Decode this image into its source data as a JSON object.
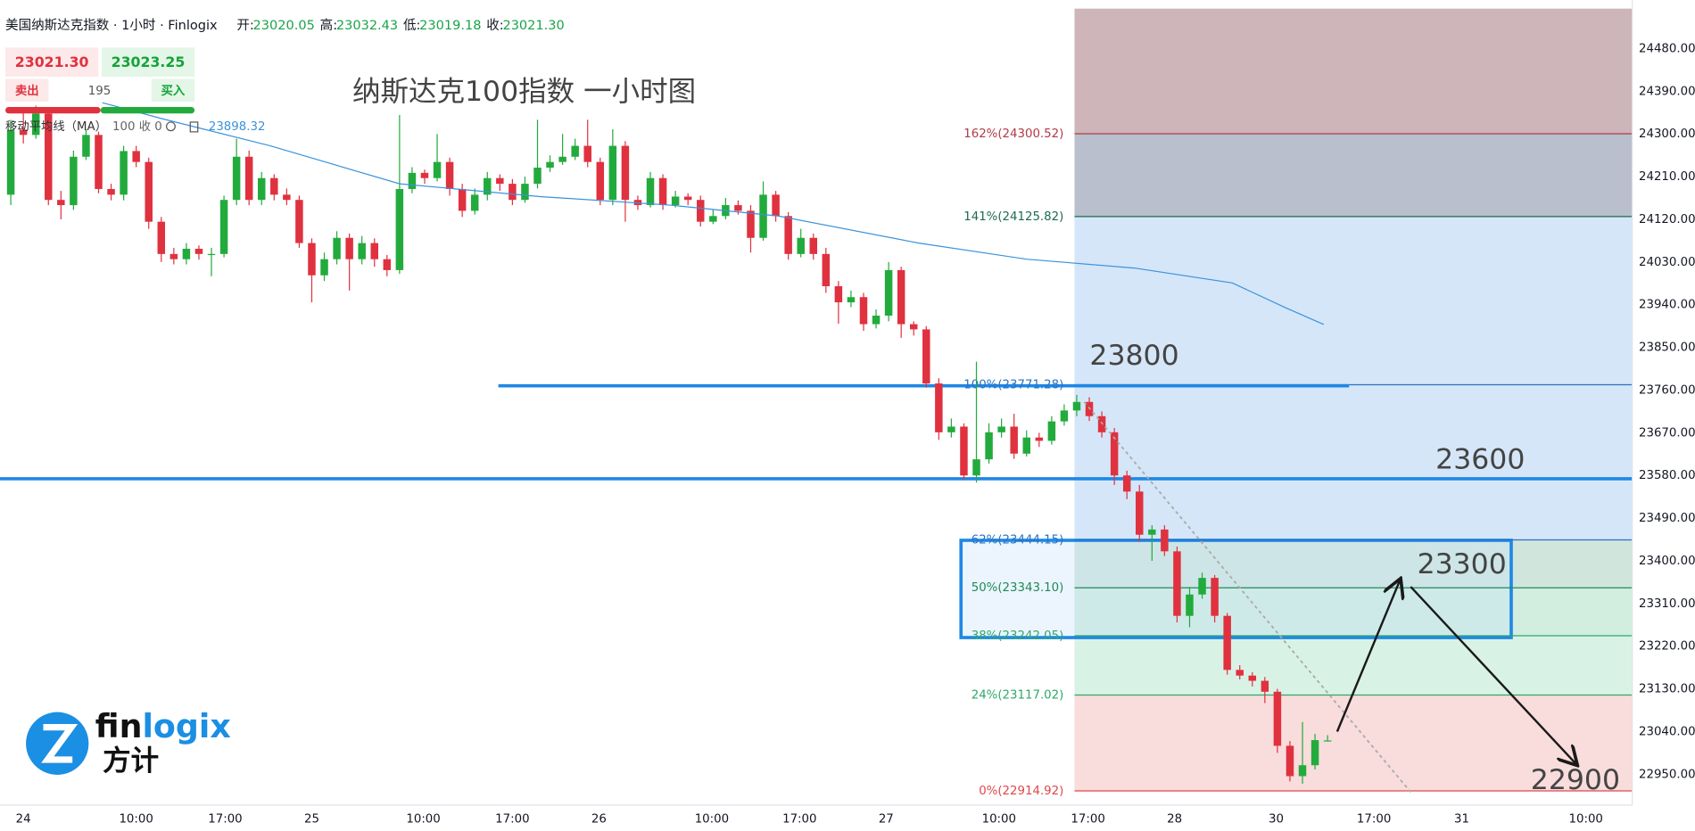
{
  "header": {
    "symbol": "美国纳斯达克指数 · 1小时 · Finlogix",
    "ohlc": [
      {
        "label": "开:",
        "value": "23020.05"
      },
      {
        "label": "高:",
        "value": "23032.43"
      },
      {
        "label": "低:",
        "value": "23019.18"
      },
      {
        "label": "收:",
        "value": "23021.30"
      }
    ]
  },
  "trade": {
    "sell_price": "23021.30",
    "buy_price": "23023.25",
    "sell": "卖出",
    "spread": "195",
    "buy": "买入"
  },
  "logo": {
    "wordmark": [
      "fin",
      "logix"
    ],
    "wordmark_cn": "方计"
  },
  "chart_data": {
    "type": "candlestick",
    "title": "纳斯达克100指数 一小时图",
    "up_color": "#22ab3c",
    "down_color": "#e0313f",
    "xlim": [
      -0.86,
      129.3
    ],
    "ylim": [
      22885,
      24582.5
    ],
    "xticks": [
      {
        "value": 1,
        "label": "24"
      },
      {
        "value": 10,
        "label": "10:00"
      },
      {
        "value": 17.1,
        "label": "17:00"
      },
      {
        "value": 24,
        "label": "25"
      },
      {
        "value": 32.9,
        "label": "10:00"
      },
      {
        "value": 40,
        "label": "17:00"
      },
      {
        "value": 46.9,
        "label": "26"
      },
      {
        "value": 55.9,
        "label": "10:00"
      },
      {
        "value": 62.9,
        "label": "17:00"
      },
      {
        "value": 69.8,
        "label": "27"
      },
      {
        "value": 78.8,
        "label": "10:00"
      },
      {
        "value": 85.9,
        "label": "17:00"
      },
      {
        "value": 92.8,
        "label": "28"
      },
      {
        "value": 100.9,
        "label": "30"
      },
      {
        "value": 108.7,
        "label": "17:00"
      },
      {
        "value": 115.7,
        "label": "31"
      },
      {
        "value": 125.6,
        "label": "10:00"
      }
    ],
    "yticks": [
      {
        "value": 24480,
        "label": "24480.00"
      },
      {
        "value": 24390,
        "label": "24390.00"
      },
      {
        "value": 24300,
        "label": "24300.00"
      },
      {
        "value": 24210,
        "label": "24210.00"
      },
      {
        "value": 24120,
        "label": "24120.00"
      },
      {
        "value": 24030,
        "label": "24030.00"
      },
      {
        "value": 23940,
        "label": "23940.00"
      },
      {
        "value": 23850,
        "label": "23850.00"
      },
      {
        "value": 23760,
        "label": "23760.00"
      },
      {
        "value": 23670,
        "label": "23670.00"
      },
      {
        "value": 23580,
        "label": "23580.00"
      },
      {
        "value": 23490,
        "label": "23490.00"
      },
      {
        "value": 23400,
        "label": "23400.00"
      },
      {
        "value": 23310,
        "label": "23310.00"
      },
      {
        "value": 23220,
        "label": "23220.00"
      },
      {
        "value": 23130,
        "label": "23130.00"
      },
      {
        "value": 23040,
        "label": "23040.00"
      },
      {
        "value": 22950,
        "label": "22950.00"
      }
    ],
    "ohlc": [
      [
        24172,
        24330,
        24150,
        24309
      ],
      [
        24309,
        24355,
        24280,
        24298
      ],
      [
        24298,
        24360,
        24290,
        24343
      ],
      [
        24343,
        24355,
        24150,
        24161
      ],
      [
        24161,
        24180,
        24120,
        24150
      ],
      [
        24150,
        24265,
        24140,
        24252
      ],
      [
        24252,
        24310,
        24245,
        24298
      ],
      [
        24298,
        24305,
        24175,
        24184
      ],
      [
        24184,
        24195,
        24160,
        24172
      ],
      [
        24172,
        24275,
        24160,
        24264
      ],
      [
        24264,
        24275,
        24230,
        24241
      ],
      [
        24241,
        24250,
        24100,
        24115
      ],
      [
        24115,
        24125,
        24030,
        24047
      ],
      [
        24047,
        24060,
        24025,
        24036
      ],
      [
        24036,
        24070,
        24025,
        24058
      ],
      [
        24058,
        24065,
        24035,
        24047
      ],
      [
        24047,
        24060,
        24000,
        24047
      ],
      [
        24047,
        24170,
        24040,
        24161
      ],
      [
        24161,
        24290,
        24150,
        24252
      ],
      [
        24252,
        24265,
        24150,
        24161
      ],
      [
        24161,
        24220,
        24150,
        24207
      ],
      [
        24207,
        24215,
        24160,
        24172
      ],
      [
        24172,
        24185,
        24150,
        24161
      ],
      [
        24161,
        24170,
        24060,
        24070
      ],
      [
        24070,
        24080,
        23945,
        24002
      ],
      [
        24002,
        24050,
        23990,
        24036
      ],
      [
        24036,
        24095,
        24025,
        24081
      ],
      [
        24081,
        24090,
        23970,
        24036
      ],
      [
        24036,
        24085,
        24025,
        24070
      ],
      [
        24070,
        24080,
        24020,
        24036
      ],
      [
        24036,
        24045,
        24000,
        24013
      ],
      [
        24013,
        24340,
        24005,
        24184
      ],
      [
        24184,
        24230,
        24175,
        24218
      ],
      [
        24218,
        24225,
        24195,
        24207
      ],
      [
        24207,
        24300,
        24200,
        24241
      ],
      [
        24241,
        24250,
        24170,
        24184
      ],
      [
        24184,
        24195,
        24125,
        24138
      ],
      [
        24138,
        24185,
        24130,
        24172
      ],
      [
        24172,
        24220,
        24160,
        24207
      ],
      [
        24207,
        24215,
        24180,
        24195
      ],
      [
        24195,
        24205,
        24150,
        24161
      ],
      [
        24161,
        24210,
        24155,
        24195
      ],
      [
        24195,
        24330,
        24185,
        24229
      ],
      [
        24229,
        24255,
        24220,
        24241
      ],
      [
        24241,
        24300,
        24235,
        24252
      ],
      [
        24252,
        24290,
        24245,
        24275
      ],
      [
        24275,
        24330,
        24230,
        24241
      ],
      [
        24241,
        24250,
        24150,
        24161
      ],
      [
        24161,
        24310,
        24150,
        24275
      ],
      [
        24275,
        24285,
        24115,
        24161
      ],
      [
        24161,
        24170,
        24140,
        24150
      ],
      [
        24150,
        24220,
        24145,
        24207
      ],
      [
        24207,
        24215,
        24140,
        24150
      ],
      [
        24150,
        24180,
        24145,
        24168
      ],
      [
        24168,
        24175,
        24150,
        24161
      ],
      [
        24161,
        24170,
        24105,
        24115
      ],
      [
        24115,
        24140,
        24110,
        24127
      ],
      [
        24127,
        24165,
        24120,
        24150
      ],
      [
        24150,
        24160,
        24130,
        24138
      ],
      [
        24138,
        24150,
        24050,
        24081
      ],
      [
        24081,
        24200,
        24075,
        24172
      ],
      [
        24172,
        24180,
        24115,
        24127
      ],
      [
        24127,
        24135,
        24035,
        24047
      ],
      [
        24047,
        24100,
        24040,
        24081
      ],
      [
        24081,
        24090,
        24035,
        24047
      ],
      [
        24047,
        24060,
        23965,
        23979
      ],
      [
        23979,
        23990,
        23900,
        23945
      ],
      [
        23945,
        23970,
        23935,
        23956
      ],
      [
        23956,
        23965,
        23885,
        23899
      ],
      [
        23899,
        23930,
        23890,
        23917
      ],
      [
        23917,
        24030,
        23905,
        24013
      ],
      [
        24013,
        24020,
        23870,
        23899
      ],
      [
        23899,
        23905,
        23875,
        23888
      ],
      [
        23888,
        23895,
        23765,
        23774
      ],
      [
        23774,
        23785,
        23655,
        23671
      ],
      [
        23671,
        23700,
        23660,
        23683
      ],
      [
        23683,
        23690,
        23570,
        23580
      ],
      [
        23580,
        23820,
        23565,
        23614
      ],
      [
        23614,
        23690,
        23605,
        23671
      ],
      [
        23671,
        23700,
        23660,
        23683
      ],
      [
        23683,
        23710,
        23615,
        23626
      ],
      [
        23626,
        23675,
        23620,
        23660
      ],
      [
        23660,
        23670,
        23640,
        23653
      ],
      [
        23653,
        23705,
        23645,
        23694
      ],
      [
        23694,
        23730,
        23685,
        23717
      ],
      [
        23717,
        23750,
        23705,
        23735
      ],
      [
        23735,
        23745,
        23695,
        23705
      ],
      [
        23705,
        23715,
        23660,
        23671
      ],
      [
        23671,
        23680,
        23560,
        23580
      ],
      [
        23580,
        23590,
        23530,
        23546
      ],
      [
        23546,
        23560,
        23440,
        23455
      ],
      [
        23455,
        23475,
        23400,
        23466
      ],
      [
        23466,
        23475,
        23410,
        23420
      ],
      [
        23420,
        23430,
        23270,
        23284
      ],
      [
        23284,
        23345,
        23260,
        23329
      ],
      [
        23329,
        23375,
        23320,
        23364
      ],
      [
        23364,
        23370,
        23270,
        23284
      ],
      [
        23284,
        23290,
        23160,
        23170
      ],
      [
        23170,
        23180,
        23150,
        23158
      ],
      [
        23158,
        23165,
        23135,
        23147
      ],
      [
        23147,
        23155,
        23100,
        23124
      ],
      [
        23124,
        23130,
        22995,
        23010
      ],
      [
        23010,
        23020,
        22935,
        22946
      ],
      [
        22946,
        23060,
        22930,
        22969
      ],
      [
        22969,
        23035,
        22960,
        23022
      ],
      [
        23020.05,
        23032.43,
        23019.18,
        23021.3
      ]
    ],
    "ma": {
      "name": "移动平均线（MA）",
      "params": "100 收 0",
      "value_label": "23898.32",
      "color": "#3b92dc",
      "x": [
        7.3,
        12.1,
        20.7,
        31,
        42.2,
        52.6,
        61.2,
        72.4,
        81,
        89.7,
        97.4,
        101.7,
        104.7
      ],
      "values": [
        24366,
        24332,
        24275,
        24195,
        24168,
        24150,
        24127,
        24070,
        24036,
        24017,
        23986,
        23933,
        23898.32
      ]
    },
    "fib": [
      {
        "value": 22914.92,
        "label": "0%(22914.92)",
        "color": "#e0474c",
        "fill": "#f9dcdc"
      },
      {
        "value": 23117.02,
        "label": "24%(23117.02)",
        "color": "#2fa86a",
        "fill": "#d9f2e6"
      },
      {
        "value": 23242.05,
        "label": "38%(23242.05)",
        "color": "#2fa86a",
        "fill": "#d2eedf"
      },
      {
        "value": 23343.1,
        "label": "50%(23343.10)",
        "color": "#1f8a5a",
        "fill": "#d0e6dc"
      },
      {
        "value": 23444.15,
        "label": "62%(23444.15)",
        "color": "#2a72c4",
        "fill": "#d5e6f8"
      },
      {
        "value": 23771.28,
        "label": "100%(23771.28)",
        "color": "#2a72c4",
        "fill": "#d5e6f8"
      },
      {
        "value": 24125.82,
        "label": "141%(24125.82)",
        "color": "#1e6b4f",
        "fill": "#b9bfcc"
      },
      {
        "value": 24300.52,
        "label": "162%(24300.52)",
        "color": "#b23a48",
        "fill": "#cdb5b9"
      }
    ],
    "hlines": [
      {
        "value": 23769,
        "color": "#1e88e5"
      },
      {
        "value": 23573,
        "color": "#1e88e5"
      }
    ],
    "annotations": [
      "23800",
      "23600",
      "23300",
      "22900"
    ]
  }
}
